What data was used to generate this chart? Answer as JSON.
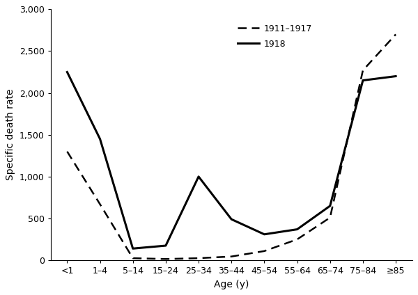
{
  "age_labels": [
    "<1",
    "1–4",
    "5–14",
    "15–24",
    "25–34",
    "35–44",
    "45–54",
    "55–64",
    "65–74",
    "75–84",
    "≥85"
  ],
  "series_1911_1917": [
    1300,
    670,
    25,
    15,
    25,
    45,
    110,
    250,
    510,
    2270,
    2700
  ],
  "series_1918": [
    2250,
    1450,
    140,
    175,
    1000,
    490,
    310,
    370,
    650,
    2150,
    2200
  ],
  "ylabel": "Specific death rate",
  "xlabel": "Age (y)",
  "legend_1911_1917": "1911–1917",
  "legend_1918": "1918",
  "ylim": [
    0,
    3000
  ],
  "yticks": [
    0,
    500,
    1000,
    1500,
    2000,
    2500,
    3000
  ],
  "color": "#000000",
  "background": "#ffffff",
  "line_width": 1.8
}
